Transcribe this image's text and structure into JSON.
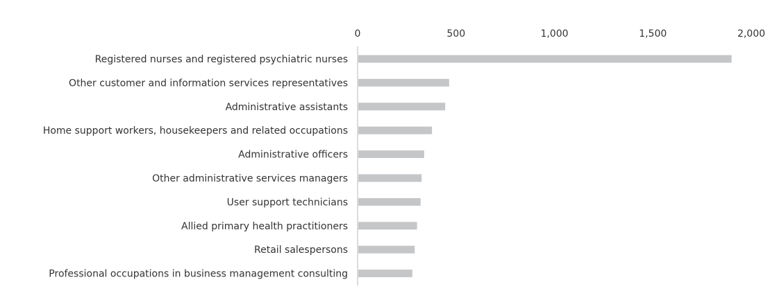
{
  "chart_data": {
    "type": "bar",
    "orientation": "horizontal",
    "title": "",
    "xlabel": "",
    "ylabel": "",
    "categories": [
      "Registered nurses and registered psychiatric nurses",
      "Other customer and information services representatives",
      "Administrative assistants",
      "Home support workers, housekeepers and related occupations",
      "Administrative officers",
      "Other administrative services managers",
      "User support technicians",
      "Allied primary health practitioners",
      "Retail salespersons",
      "Professional occupations in business management consulting"
    ],
    "values": [
      1900,
      465,
      445,
      378,
      338,
      325,
      320,
      302,
      290,
      278
    ],
    "xlim": [
      0,
      2000
    ],
    "x_ticks": [
      0,
      500,
      1000,
      1500,
      2000
    ],
    "x_tick_labels": [
      "0",
      "500",
      "1,000",
      "1,500",
      "2,000"
    ],
    "x_axis_position": "top",
    "grid": false,
    "legend": "none",
    "bar_color": "#c4c6c8",
    "axis_color": "#d0d0d0",
    "text_color": "#333333"
  }
}
